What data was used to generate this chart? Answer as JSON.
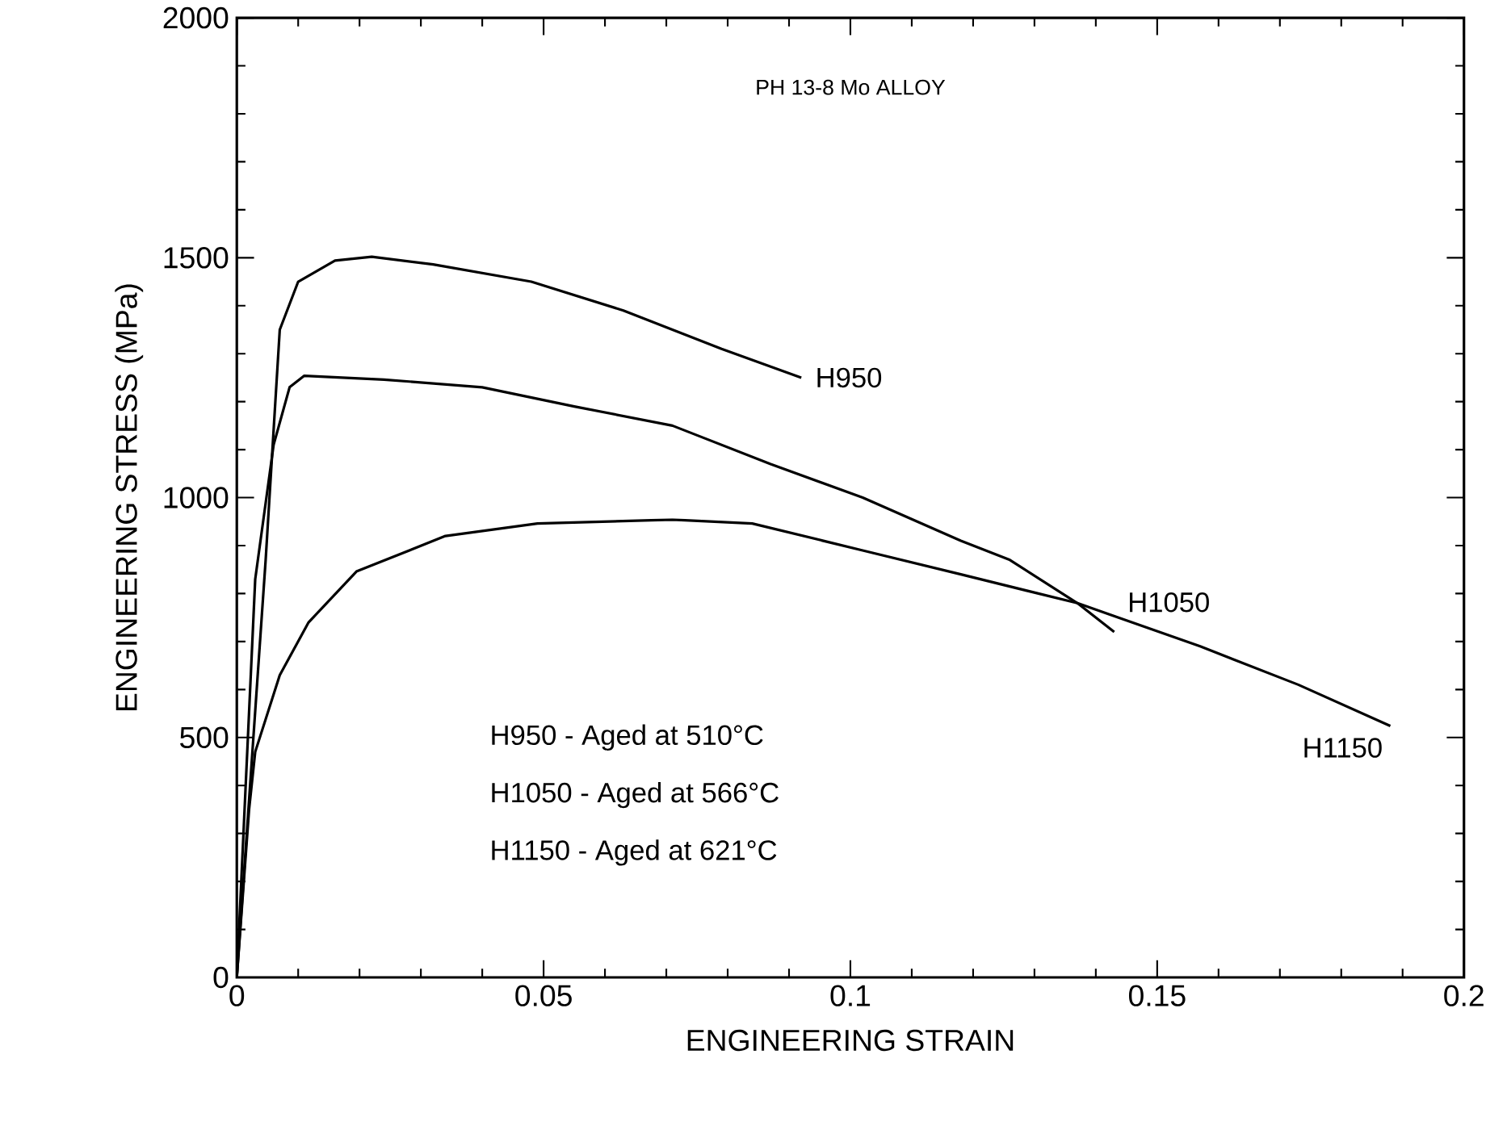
{
  "chart_data": {
    "type": "line",
    "title": "PH 13-8 Mo ALLOY",
    "xlabel": "ENGINEERING STRAIN",
    "ylabel": "ENGINEERING STRESS (MPa)",
    "xlim": [
      0,
      0.2
    ],
    "ylim": [
      0,
      2000
    ],
    "xticks": [
      0,
      0.05,
      0.1,
      0.15,
      0.2
    ],
    "yticks": [
      0,
      500,
      1000,
      1500,
      2000
    ],
    "grid": false,
    "line_style": "solid",
    "series": [
      {
        "name": "H950",
        "color": "#000000",
        "x": [
          0,
          0.0047,
          0.007,
          0.01,
          0.016,
          0.022,
          0.032,
          0.048,
          0.063,
          0.079,
          0.092
        ],
        "values": [
          0,
          870,
          1350,
          1450,
          1494,
          1502,
          1486,
          1450,
          1390,
          1310,
          1250
        ]
      },
      {
        "name": "H1050",
        "color": "#000000",
        "x": [
          0,
          0.003,
          0.006,
          0.0086,
          0.011,
          0.024,
          0.04,
          0.055,
          0.071,
          0.087,
          0.102,
          0.118,
          0.126,
          0.137,
          0.143
        ],
        "values": [
          0,
          830,
          1110,
          1230,
          1254,
          1246,
          1230,
          1190,
          1150,
          1070,
          1000,
          910,
          870,
          780,
          720
        ]
      },
      {
        "name": "H1150",
        "color": "#000000",
        "x": [
          0,
          0.002,
          0.003,
          0.007,
          0.0117,
          0.0195,
          0.034,
          0.049,
          0.071,
          0.084,
          0.102,
          0.118,
          0.137,
          0.157,
          0.173,
          0.188
        ],
        "values": [
          0,
          350,
          470,
          630,
          740,
          846,
          920,
          946,
          954,
          946,
          890,
          840,
          780,
          690,
          610,
          524
        ]
      }
    ],
    "annotations": [
      "H950 - Aged at 510°C",
      "H1050 - Aged at 566°C",
      "H1150 - Aged at 621°C"
    ]
  }
}
